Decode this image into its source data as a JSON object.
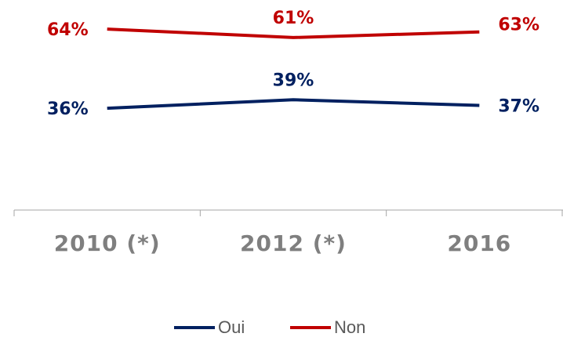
{
  "chart_data": {
    "type": "line",
    "categories": [
      "2010 (*)",
      "2012 (*)",
      "2016"
    ],
    "series": [
      {
        "name": "Oui",
        "color": "#002060",
        "values": [
          36,
          39,
          37
        ],
        "value_labels": [
          "36%",
          "39%",
          "37%"
        ]
      },
      {
        "name": "Non",
        "color": "#c00000",
        "values": [
          64,
          61,
          63
        ],
        "value_labels": [
          "64%",
          "61%",
          "63%"
        ]
      }
    ],
    "ylim": [
      0,
      74
    ],
    "legend": "bottom"
  }
}
